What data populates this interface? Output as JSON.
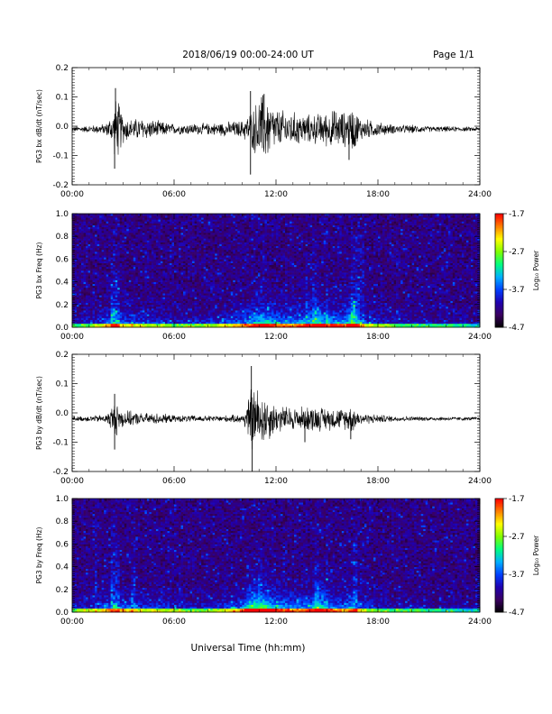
{
  "header": {
    "title": "2018/06/19  00:00-24:00 UT",
    "page": "Page 1/1"
  },
  "xlabel": "Universal Time (hh:mm)",
  "x_ticks": [
    "00:00",
    "06:00",
    "12:00",
    "18:00",
    "24:00"
  ],
  "colorbar": {
    "label": "Log₁₀ Power",
    "ticks": [
      "-1.7",
      "-2.7",
      "-3.7",
      "-4.7"
    ],
    "range": [
      -4.7,
      -1.7
    ],
    "colormap": [
      "#000000",
      "#3a0060",
      "#2000b0",
      "#0040ff",
      "#00b0ff",
      "#00ff80",
      "#80ff00",
      "#ffff00",
      "#ff8000",
      "#ff0000"
    ]
  },
  "chart_data": [
    {
      "type": "line",
      "ylabel": "PG3 bx dB/dt (nT/sec)",
      "xlim": [
        0,
        24
      ],
      "ylim": [
        -0.2,
        0.2
      ],
      "y_ticks": [
        "0.2",
        "0.1",
        "0.0",
        "-0.1",
        "-0.2"
      ],
      "baseline": -0.01,
      "envelope": {
        "x_hours": [
          0,
          1,
          2,
          2.4,
          2.6,
          3,
          3.5,
          4,
          5,
          6,
          7,
          8,
          9,
          10,
          10.5,
          10.9,
          11.2,
          11.6,
          12,
          13,
          14,
          15,
          15.5,
          16,
          16.5,
          17,
          18,
          19,
          20,
          21,
          22,
          23,
          24
        ],
        "amplitude": [
          0.01,
          0.012,
          0.02,
          0.06,
          0.12,
          0.05,
          0.035,
          0.04,
          0.03,
          0.018,
          0.02,
          0.02,
          0.025,
          0.03,
          0.06,
          0.1,
          0.13,
          0.1,
          0.07,
          0.06,
          0.05,
          0.06,
          0.07,
          0.06,
          0.08,
          0.04,
          0.025,
          0.015,
          0.015,
          0.01,
          0.01,
          0.008,
          0.008
        ]
      },
      "spikes": [
        {
          "x": 2.55,
          "y": 0.13
        },
        {
          "x": 2.5,
          "y": -0.145
        },
        {
          "x": 10.5,
          "y": 0.12
        },
        {
          "x": 10.5,
          "y": -0.165
        },
        {
          "x": 16.3,
          "y": -0.115
        },
        {
          "x": 11.3,
          "y": 0.11
        }
      ]
    },
    {
      "type": "heatmap",
      "ylabel": "PG3 bx Freq (Hz)",
      "xlim": [
        0,
        24
      ],
      "ylim": [
        0,
        1.0
      ],
      "y_ticks": [
        "1.0",
        "0.8",
        "0.6",
        "0.4",
        "0.2",
        "0.0"
      ],
      "activity": {
        "x_hours": [
          0,
          1,
          2,
          2.5,
          3,
          4,
          5,
          6,
          7,
          8,
          9,
          10,
          11,
          11.5,
          12,
          13,
          14,
          14.5,
          15,
          16,
          16.6,
          17,
          18,
          19,
          20,
          22,
          24
        ],
        "level": [
          0.2,
          0.25,
          0.4,
          0.6,
          0.4,
          0.35,
          0.3,
          0.25,
          0.25,
          0.3,
          0.35,
          0.45,
          0.65,
          0.7,
          0.55,
          0.5,
          0.6,
          0.75,
          0.6,
          0.55,
          0.8,
          0.4,
          0.3,
          0.25,
          0.2,
          0.15,
          0.1
        ]
      },
      "streaks_hours": [
        2.4,
        2.7,
        13.8,
        14.3,
        15.0,
        16.5,
        16.8,
        17.1
      ]
    },
    {
      "type": "line",
      "ylabel": "PG3 by dB/dt (nT/sec)",
      "xlim": [
        0,
        24
      ],
      "ylim": [
        -0.2,
        0.2
      ],
      "y_ticks": [
        "0.2",
        "0.1",
        "0.0",
        "-0.1",
        "-0.2"
      ],
      "baseline": -0.02,
      "envelope": {
        "x_hours": [
          0,
          1,
          2,
          2.4,
          2.6,
          3,
          4,
          5,
          6,
          7,
          8,
          9,
          10,
          10.3,
          10.6,
          11,
          11.5,
          12,
          13,
          14,
          15,
          16,
          16.4,
          17,
          18,
          19,
          20,
          22,
          24
        ],
        "amplitude": [
          0.008,
          0.01,
          0.015,
          0.05,
          0.06,
          0.03,
          0.02,
          0.02,
          0.012,
          0.012,
          0.01,
          0.012,
          0.015,
          0.05,
          0.13,
          0.1,
          0.08,
          0.05,
          0.04,
          0.045,
          0.04,
          0.035,
          0.05,
          0.02,
          0.015,
          0.01,
          0.008,
          0.007,
          0.006
        ]
      },
      "spikes": [
        {
          "x": 2.5,
          "y": 0.065
        },
        {
          "x": 2.5,
          "y": -0.125
        },
        {
          "x": 10.55,
          "y": 0.16
        },
        {
          "x": 10.6,
          "y": -0.2
        },
        {
          "x": 13.7,
          "y": -0.1
        },
        {
          "x": 16.4,
          "y": -0.09
        }
      ]
    },
    {
      "type": "heatmap",
      "ylabel": "PG3 by Freq (Hz)",
      "xlim": [
        0,
        24
      ],
      "ylim": [
        0,
        1.0
      ],
      "y_ticks": [
        "1.0",
        "0.8",
        "0.6",
        "0.4",
        "0.2",
        "0.0"
      ],
      "activity": {
        "x_hours": [
          0,
          1,
          2,
          2.5,
          3,
          4,
          5,
          6,
          7,
          8,
          9,
          10,
          10.5,
          11,
          11.5,
          12,
          13,
          14,
          14.5,
          15,
          16,
          16.6,
          17,
          18,
          19,
          20,
          22,
          24
        ],
        "level": [
          0.2,
          0.3,
          0.45,
          0.55,
          0.4,
          0.35,
          0.35,
          0.3,
          0.25,
          0.25,
          0.35,
          0.45,
          0.8,
          0.85,
          0.75,
          0.6,
          0.5,
          0.55,
          0.75,
          0.55,
          0.45,
          0.6,
          0.35,
          0.25,
          0.2,
          0.2,
          0.12,
          0.1
        ]
      },
      "streaks_hours": [
        1.4,
        2.4,
        2.7,
        3.6,
        14.4,
        15.0,
        16.7
      ]
    }
  ]
}
